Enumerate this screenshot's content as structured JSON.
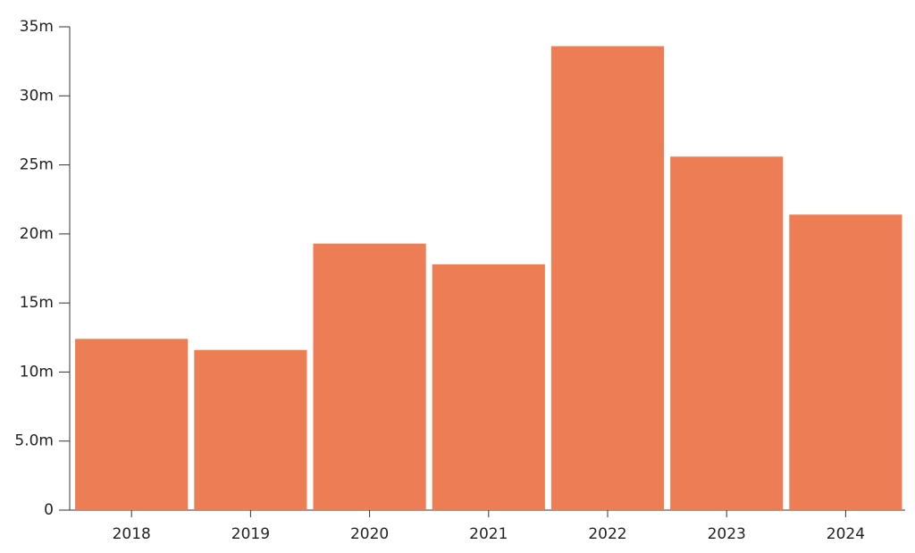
{
  "chart_data": {
    "type": "bar",
    "categories": [
      "2018",
      "2019",
      "2020",
      "2021",
      "2022",
      "2023",
      "2024"
    ],
    "values": [
      12400000,
      11600000,
      19300000,
      17800000,
      33600000,
      25600000,
      21400000
    ],
    "color": "#ed7d55",
    "ylim": [
      0,
      35000000
    ],
    "yticks": [
      0,
      {
        "value": 5000000,
        "label": "5.0m"
      },
      {
        "value": 10000000,
        "label": "10m"
      },
      {
        "value": 15000000,
        "label": "15m"
      },
      {
        "value": 20000000,
        "label": "20m"
      },
      {
        "value": 25000000,
        "label": "25m"
      },
      {
        "value": 30000000,
        "label": "30m"
      },
      {
        "value": 35000000,
        "label": "35m"
      }
    ],
    "grid": false
  }
}
